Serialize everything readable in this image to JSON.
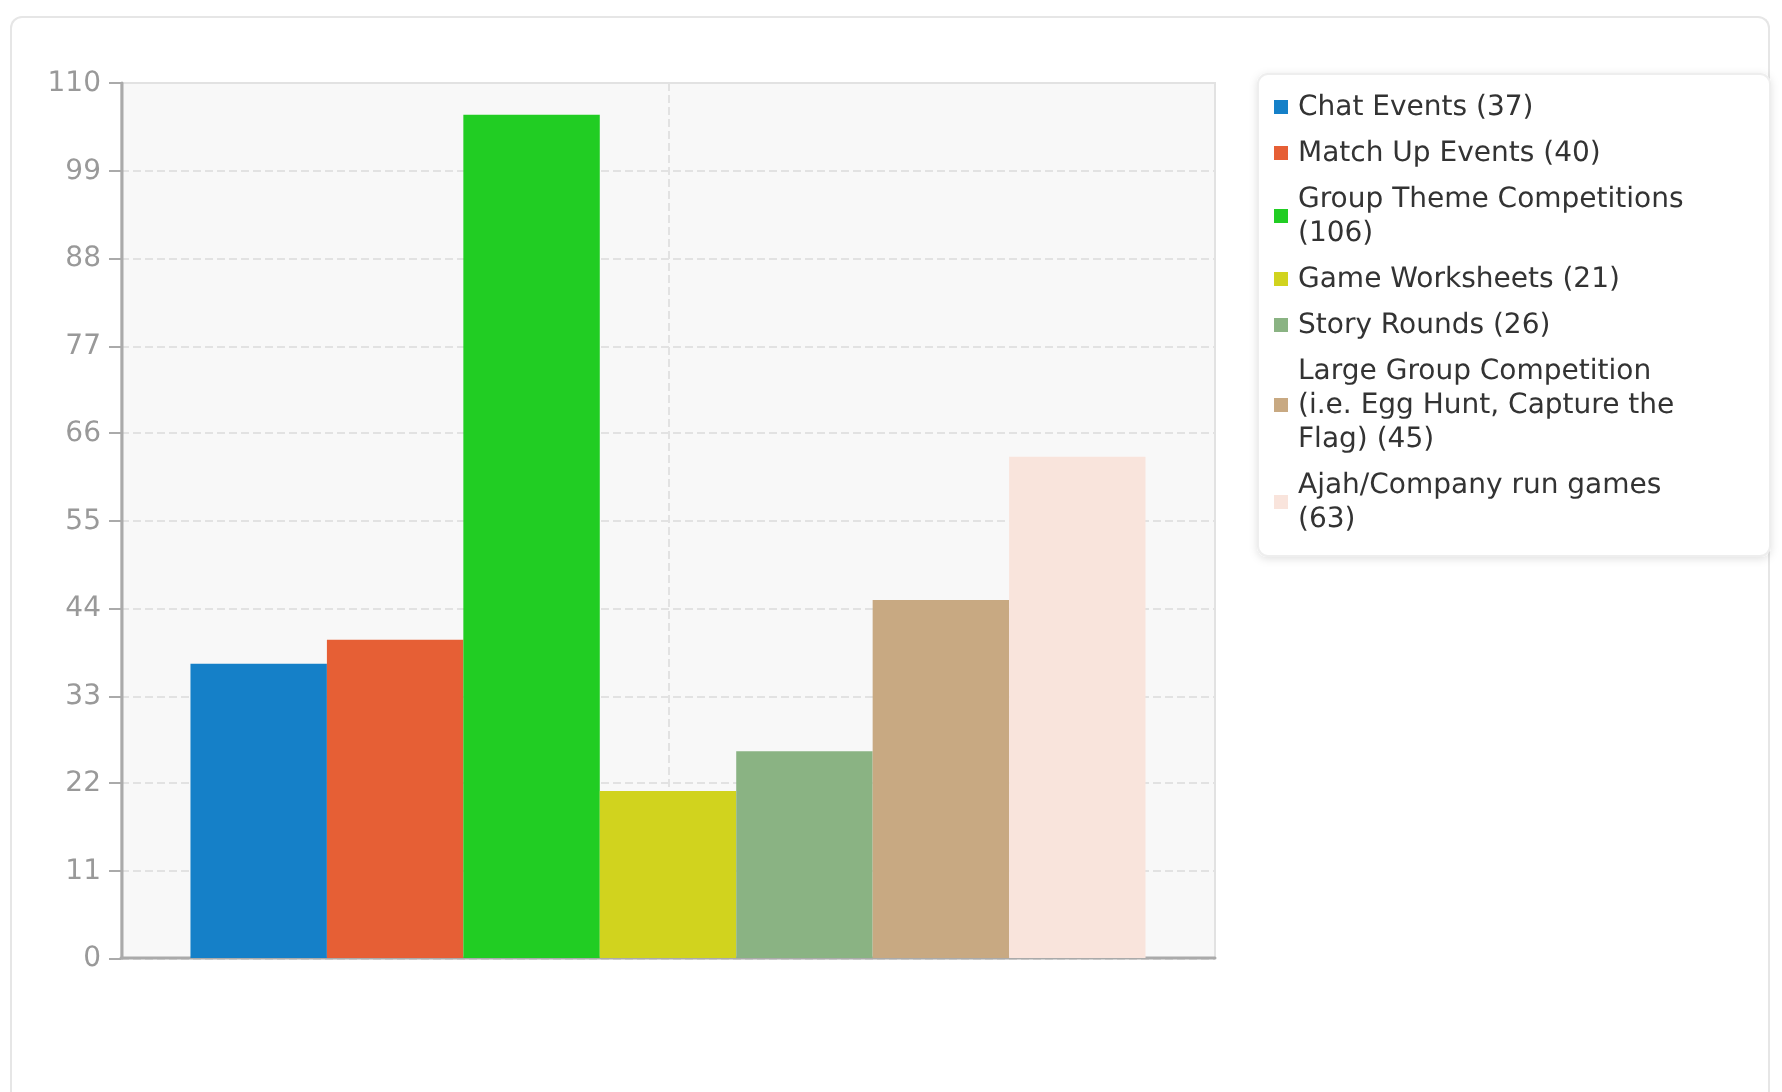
{
  "chart_data": {
    "type": "bar",
    "categories": [
      null
    ],
    "series": [
      {
        "name": "Chat Events (37)",
        "color": "#1580c8",
        "values": [
          37
        ]
      },
      {
        "name": "Match Up Events (40)",
        "color": "#e65f35",
        "values": [
          40
        ]
      },
      {
        "name": "Group Theme Competitions (106)",
        "color": "#21cd23",
        "values": [
          106
        ]
      },
      {
        "name": "Game Worksheets (21)",
        "color": "#d1d31e",
        "values": [
          21
        ]
      },
      {
        "name": "Story Rounds (26)",
        "color": "#8ab383",
        "values": [
          26
        ]
      },
      {
        "name": "Large Group Competition (i.e. Egg Hunt, Capture the Flag) (45)",
        "color": "#c8a982",
        "values": [
          45
        ]
      },
      {
        "name": "Ajah/Company run games (63)",
        "color": "#f9e4dc",
        "values": [
          63
        ]
      }
    ],
    "ylim": [
      0,
      110
    ],
    "yticks": [
      0,
      11,
      22,
      33,
      44,
      55,
      66,
      77,
      88,
      99,
      110
    ],
    "grid": true,
    "legend": "top right"
  }
}
